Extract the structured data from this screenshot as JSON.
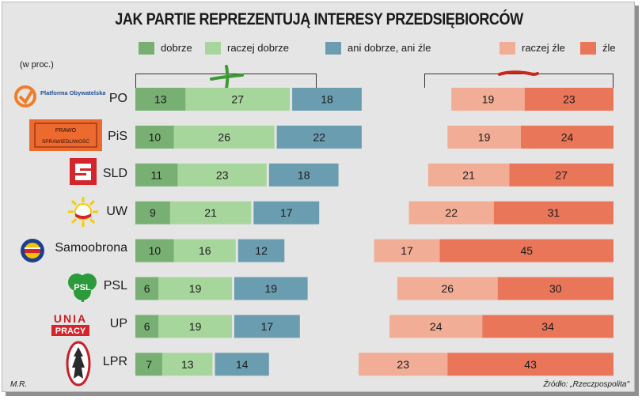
{
  "title": "JAK PARTIE REPREZENTUJĄ INTERESY PRZEDSIĘBIORCÓW",
  "unit_note": "(w proc.)",
  "legend": [
    {
      "label": "dobrze",
      "color": "#78b074"
    },
    {
      "label": "raczej dobrze",
      "color": "#a7d69c"
    },
    {
      "label": "ani dobrze, ani źle",
      "color": "#6b9db0"
    },
    {
      "label": "raczej źle",
      "color": "#f1ad96"
    },
    {
      "label": "źle",
      "color": "#ea7659"
    }
  ],
  "parties": [
    "PO",
    "PiS",
    "SLD",
    "UW",
    "Samoobrona",
    "PSL",
    "UP",
    "LPR"
  ],
  "logos": {
    "po_text": "Platforma Obywatelska",
    "pis_line1": "PRAWO",
    "pis_line2": "SPRAWIEDLIWOŚĆ",
    "up_line1": "UNIA",
    "up_line2": "PRACY",
    "psl": "PSL"
  },
  "chart_data": {
    "type": "bar",
    "orientation": "horizontal",
    "stacking": "diverging",
    "categories": [
      "PO",
      "PiS",
      "SLD",
      "UW",
      "Samoobrona",
      "PSL",
      "UP",
      "LPR"
    ],
    "series": [
      {
        "name": "dobrze",
        "values": [
          13,
          10,
          11,
          9,
          10,
          6,
          6,
          7
        ]
      },
      {
        "name": "raczej dobrze",
        "values": [
          27,
          26,
          23,
          21,
          16,
          19,
          19,
          13
        ]
      },
      {
        "name": "ani dobrze, ani źle",
        "values": [
          18,
          22,
          18,
          17,
          12,
          19,
          17,
          14
        ]
      },
      {
        "name": "raczej źle",
        "values": [
          19,
          19,
          21,
          22,
          17,
          26,
          24,
          23
        ]
      },
      {
        "name": "źle",
        "values": [
          23,
          24,
          27,
          31,
          45,
          30,
          34,
          43
        ]
      }
    ],
    "unit": "%"
  },
  "footer": {
    "author": "M.R.",
    "source": "Źródło: „Rzeczpospolita\""
  }
}
